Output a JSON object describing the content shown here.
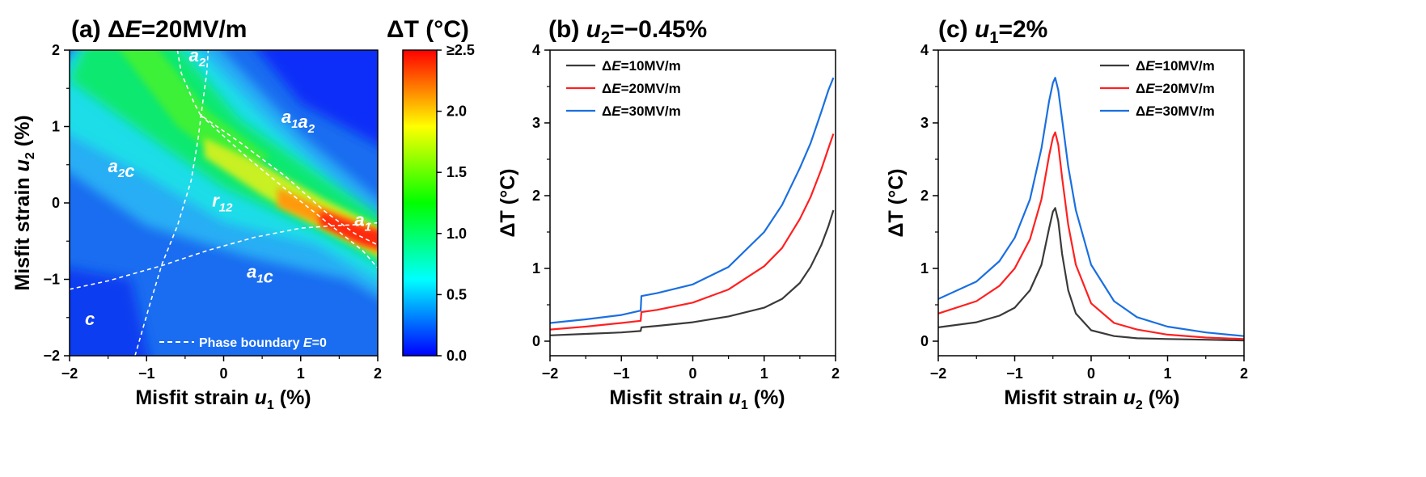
{
  "chart_data": [
    {
      "panel": "a",
      "type": "heatmap",
      "title": "(a) ΔE=20MV/m",
      "xlabel": "Misfit strain u1 (%)",
      "ylabel": "Misfit strain u2 (%)",
      "xlim": [
        -2,
        2
      ],
      "ylim": [
        -2,
        2
      ],
      "xticks": [
        "−2",
        "−1",
        "0",
        "1",
        "2"
      ],
      "yticks": [
        "−2",
        "−1",
        "0",
        "1",
        "2"
      ],
      "colorbar": {
        "title": "ΔT (°C)",
        "range": [
          0,
          2.5
        ],
        "ticks": [
          "0.0",
          "0.5",
          "1.0",
          "1.5",
          "2.0",
          "≥2.5"
        ],
        "colors": [
          "#0000ff",
          "#007fff",
          "#00ffff",
          "#00ff7f",
          "#00ff00",
          "#7fff00",
          "#ffff00",
          "#ff7f00",
          "#ff0000"
        ]
      },
      "regions": [
        {
          "label": "a2",
          "base": "a",
          "sub": "2",
          "x": -0.45,
          "y": 1.85
        },
        {
          "label": "a1a2",
          "base": "a",
          "sub": "1",
          "base2": "a",
          "sub2": "2",
          "x": 0.75,
          "y": 1.05
        },
        {
          "label": "a2c",
          "base": "a",
          "sub": "2",
          "base2": "c",
          "x": -1.5,
          "y": 0.4
        },
        {
          "label": "r12",
          "base": "r",
          "sub": "12",
          "x": -0.15,
          "y": -0.05
        },
        {
          "label": "a1",
          "base": "a",
          "sub": "1",
          "x": 1.7,
          "y": -0.3
        },
        {
          "label": "a1c",
          "base": "a",
          "sub": "1",
          "base2": "c",
          "x": 0.3,
          "y": -0.98
        },
        {
          "label": "c",
          "base": "c",
          "x": -1.8,
          "y": -1.6
        }
      ],
      "legend": "Phase boundary E=0",
      "legend_prefix": "Phase boundary ",
      "legend_var": "E",
      "legend_suffix": "=0"
    },
    {
      "panel": "b",
      "type": "line",
      "title": "(b) u2=−0.45%",
      "xlabel": "Misfit strain u1 (%)",
      "ylabel": "ΔT (°C)",
      "xlim": [
        -2,
        2
      ],
      "ylim": [
        -0.2,
        4
      ],
      "xticks": [
        "−2",
        "−1",
        "0",
        "1",
        "2"
      ],
      "yticks": [
        "0",
        "1",
        "2",
        "3",
        "4"
      ],
      "legend_position": "top-left",
      "x": [
        -2.0,
        -1.5,
        -1.0,
        -0.73,
        -0.72,
        -0.5,
        0.0,
        0.5,
        1.0,
        1.25,
        1.5,
        1.65,
        1.8,
        1.9,
        1.97
      ],
      "series": [
        {
          "name": "ΔE=10MV/m",
          "color": "#3a3a3a",
          "values": [
            0.08,
            0.1,
            0.12,
            0.14,
            0.19,
            0.21,
            0.26,
            0.34,
            0.46,
            0.58,
            0.8,
            1.02,
            1.32,
            1.58,
            1.8
          ]
        },
        {
          "name": "ΔE=20MV/m",
          "color": "#ff2020",
          "values": [
            0.16,
            0.2,
            0.25,
            0.28,
            0.4,
            0.43,
            0.53,
            0.71,
            1.03,
            1.28,
            1.68,
            1.98,
            2.36,
            2.65,
            2.85
          ]
        },
        {
          "name": "ΔE=30MV/m",
          "color": "#1a6fe0",
          "values": [
            0.25,
            0.3,
            0.36,
            0.42,
            0.62,
            0.66,
            0.78,
            1.02,
            1.5,
            1.87,
            2.38,
            2.72,
            3.15,
            3.45,
            3.62
          ]
        }
      ]
    },
    {
      "panel": "c",
      "type": "line",
      "title": "(c) u1=2%",
      "xlabel": "Misfit strain u2 (%)",
      "ylabel": "ΔT (°C)",
      "xlim": [
        -2,
        2
      ],
      "ylim": [
        -0.2,
        4
      ],
      "xticks": [
        "−2",
        "−1",
        "0",
        "1",
        "2"
      ],
      "yticks": [
        "0",
        "1",
        "2",
        "3",
        "4"
      ],
      "legend_position": "top-right",
      "x": [
        -2.0,
        -1.5,
        -1.2,
        -1.0,
        -0.8,
        -0.65,
        -0.55,
        -0.5,
        -0.47,
        -0.43,
        -0.38,
        -0.3,
        -0.2,
        0.0,
        0.3,
        0.6,
        1.0,
        1.5,
        2.0
      ],
      "series": [
        {
          "name": "ΔE=10MV/m",
          "color": "#3a3a3a",
          "values": [
            0.19,
            0.26,
            0.35,
            0.46,
            0.7,
            1.05,
            1.55,
            1.78,
            1.83,
            1.65,
            1.2,
            0.7,
            0.38,
            0.15,
            0.07,
            0.04,
            0.03,
            0.02,
            0.01
          ]
        },
        {
          "name": "ΔE=20MV/m",
          "color": "#ff2020",
          "values": [
            0.38,
            0.55,
            0.76,
            1.0,
            1.4,
            1.95,
            2.55,
            2.8,
            2.87,
            2.7,
            2.25,
            1.6,
            1.05,
            0.52,
            0.25,
            0.16,
            0.09,
            0.05,
            0.03
          ]
        },
        {
          "name": "ΔE=30MV/m",
          "color": "#1a6fe0",
          "values": [
            0.58,
            0.82,
            1.1,
            1.42,
            1.95,
            2.65,
            3.3,
            3.55,
            3.62,
            3.45,
            3.05,
            2.4,
            1.8,
            1.05,
            0.55,
            0.33,
            0.2,
            0.12,
            0.07
          ]
        }
      ]
    }
  ]
}
